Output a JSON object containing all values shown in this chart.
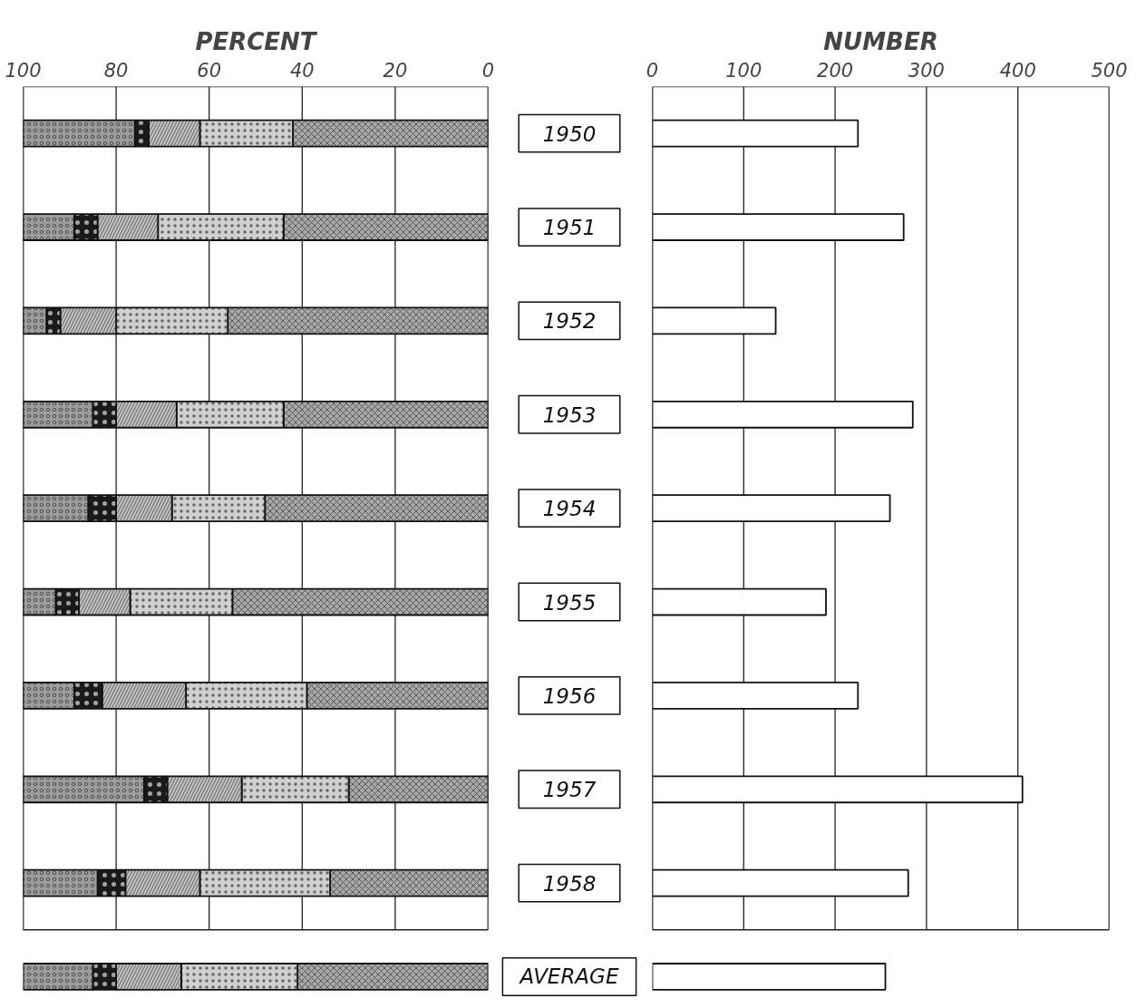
{
  "chart_data": [
    {
      "type": "bar",
      "title": "PERCENT",
      "orientation": "horizontal",
      "stacked": true,
      "grid": "x",
      "categories": [
        "1950",
        "1951",
        "1952",
        "1953",
        "1954",
        "1955",
        "1956",
        "1957",
        "1958",
        "AVERAGE"
      ],
      "xlim": [
        100,
        0
      ],
      "xticks": [
        100,
        80,
        60,
        40,
        20,
        0
      ],
      "series": [
        {
          "color": "#a8a8a8",
          "values": [
            42,
            44,
            56,
            44,
            48,
            55,
            39,
            30,
            34,
            41
          ]
        },
        {
          "color": "#d0d0d0",
          "values": [
            20,
            27,
            24,
            23,
            20,
            22,
            26,
            23,
            28,
            25
          ]
        },
        {
          "color": "#c0c0c0",
          "values": [
            11,
            13,
            12,
            13,
            12,
            11,
            18,
            16,
            16,
            14
          ]
        },
        {
          "color": "#1a1a1a",
          "values": [
            3,
            5,
            3,
            5,
            6,
            5,
            6,
            5,
            6,
            5
          ]
        },
        {
          "color": "#9c9c9c",
          "values": [
            24,
            11,
            5,
            15,
            14,
            7,
            11,
            26,
            16,
            15
          ]
        }
      ]
    },
    {
      "type": "bar",
      "title": "NUMBER",
      "orientation": "horizontal",
      "tick_labels": "x",
      "grid": "x",
      "categories": [
        null,
        null,
        null,
        null,
        null,
        null,
        null,
        null,
        null,
        null
      ],
      "xlim": [
        0,
        500
      ],
      "xticks": [
        0,
        100,
        200,
        300,
        400,
        500
      ],
      "series": [
        {
          "color": "#ffffff",
          "values": [
            225,
            275,
            135,
            285,
            260,
            190,
            225,
            405,
            280,
            255
          ]
        }
      ]
    }
  ]
}
